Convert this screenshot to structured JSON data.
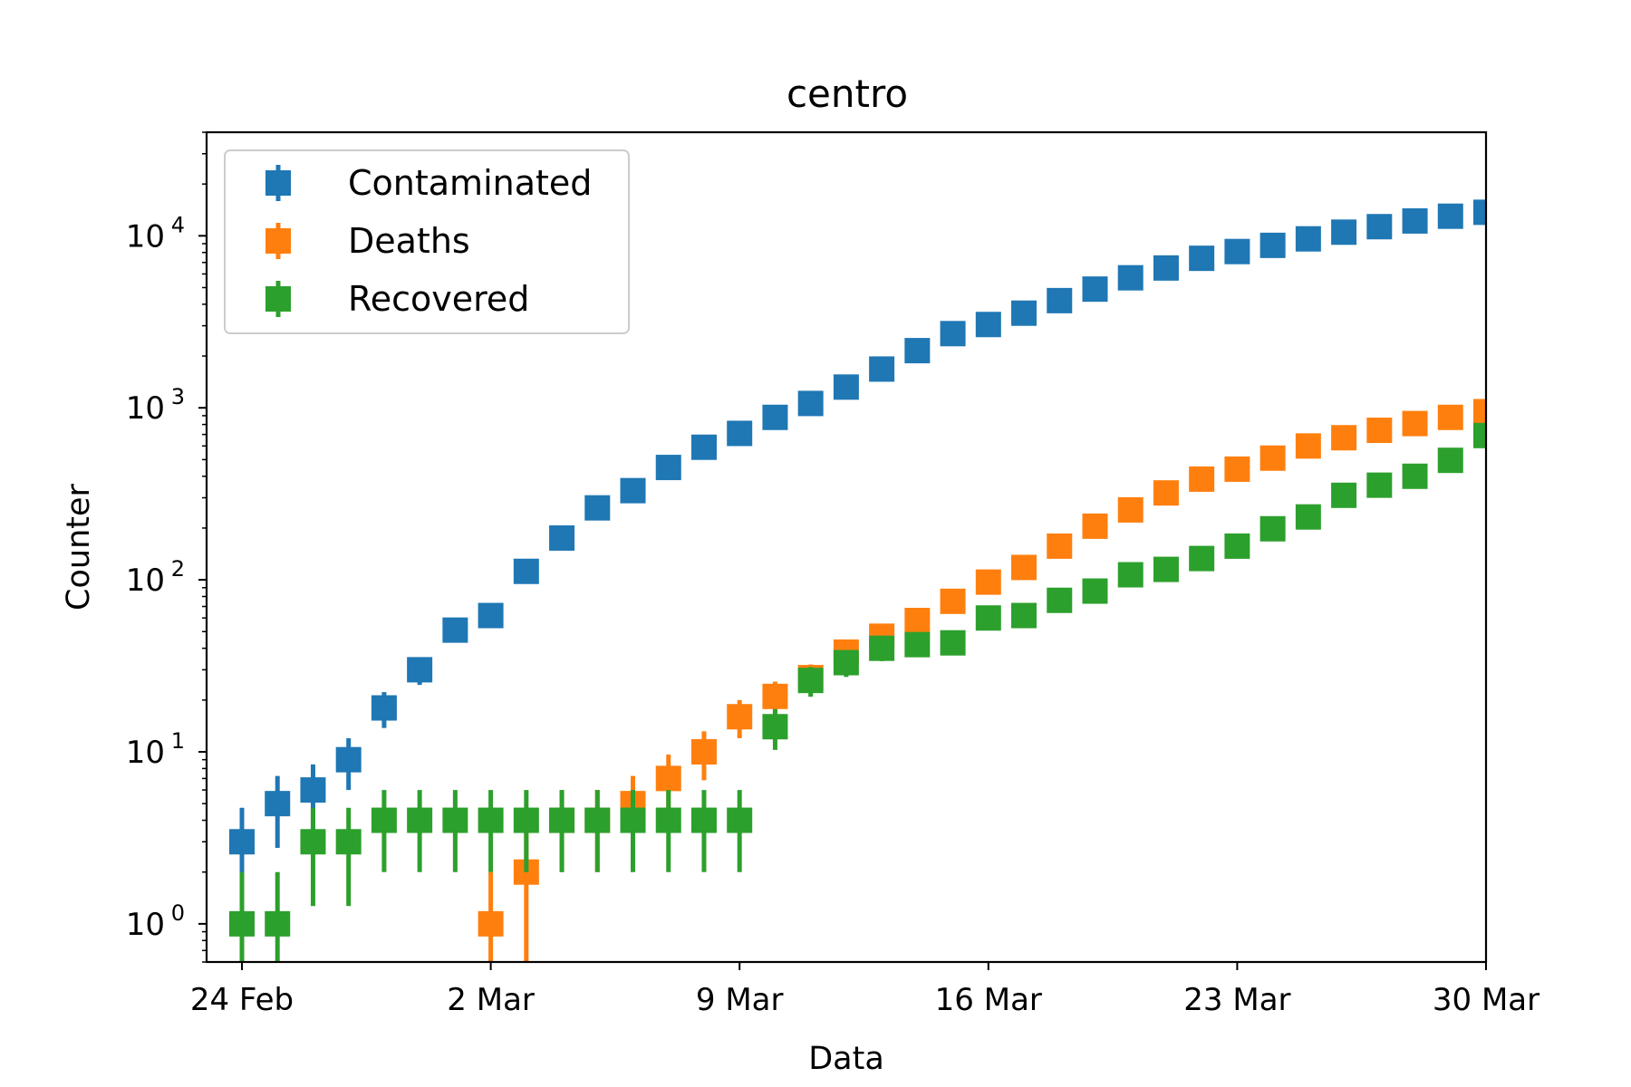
{
  "chart_data": {
    "type": "scatter",
    "title": "centro",
    "xlabel": "Data",
    "ylabel": "Counter",
    "yscale": "log",
    "ylim": [
      0.6,
      40000
    ],
    "xlim": [
      "2020-02-23",
      "2020-03-30"
    ],
    "grid": false,
    "legend_position": "top-left",
    "x_ticks": [
      {
        "date": "2020-02-24",
        "label": "24 Feb"
      },
      {
        "date": "2020-03-02",
        "label": "2 Mar"
      },
      {
        "date": "2020-03-09",
        "label": "9 Mar"
      },
      {
        "date": "2020-03-16",
        "label": "16 Mar"
      },
      {
        "date": "2020-03-23",
        "label": "23 Mar"
      },
      {
        "date": "2020-03-30",
        "label": "30 Mar"
      }
    ],
    "y_ticks": [
      {
        "value": 1,
        "base": "10",
        "exp": "0"
      },
      {
        "value": 10,
        "base": "10",
        "exp": "1"
      },
      {
        "value": 100,
        "base": "10",
        "exp": "2"
      },
      {
        "value": 1000,
        "base": "10",
        "exp": "3"
      },
      {
        "value": 10000,
        "base": "10",
        "exp": "4"
      }
    ],
    "series": [
      {
        "name": "Contaminated",
        "color": "#1f77b4",
        "points": [
          [
            "2020-02-24",
            3
          ],
          [
            "2020-02-25",
            5
          ],
          [
            "2020-02-26",
            6
          ],
          [
            "2020-02-27",
            9
          ],
          [
            "2020-02-28",
            18
          ],
          [
            "2020-02-29",
            30
          ],
          [
            "2020-03-01",
            51
          ],
          [
            "2020-03-02",
            62
          ],
          [
            "2020-03-03",
            112
          ],
          [
            "2020-03-04",
            175
          ],
          [
            "2020-03-05",
            262
          ],
          [
            "2020-03-06",
            330
          ],
          [
            "2020-03-07",
            450
          ],
          [
            "2020-03-08",
            590
          ],
          [
            "2020-03-09",
            710
          ],
          [
            "2020-03-10",
            880
          ],
          [
            "2020-03-11",
            1060
          ],
          [
            "2020-03-12",
            1320
          ],
          [
            "2020-03-13",
            1680
          ],
          [
            "2020-03-14",
            2150
          ],
          [
            "2020-03-15",
            2700
          ],
          [
            "2020-03-16",
            3050
          ],
          [
            "2020-03-17",
            3550
          ],
          [
            "2020-03-18",
            4200
          ],
          [
            "2020-03-19",
            4900
          ],
          [
            "2020-03-20",
            5700
          ],
          [
            "2020-03-21",
            6500
          ],
          [
            "2020-03-22",
            7400
          ],
          [
            "2020-03-23",
            8100
          ],
          [
            "2020-03-24",
            8800
          ],
          [
            "2020-03-25",
            9600
          ],
          [
            "2020-03-26",
            10500
          ],
          [
            "2020-03-27",
            11300
          ],
          [
            "2020-03-28",
            12200
          ],
          [
            "2020-03-29",
            13000
          ],
          [
            "2020-03-30",
            13700
          ]
        ]
      },
      {
        "name": "Deaths",
        "color": "#ff7f0e",
        "points": [
          [
            "2020-03-02",
            1
          ],
          [
            "2020-03-03",
            2
          ],
          [
            "2020-03-04",
            4
          ],
          [
            "2020-03-05",
            4
          ],
          [
            "2020-03-06",
            5
          ],
          [
            "2020-03-07",
            7
          ],
          [
            "2020-03-08",
            10
          ],
          [
            "2020-03-09",
            16
          ],
          [
            "2020-03-10",
            21
          ],
          [
            "2020-03-11",
            27
          ],
          [
            "2020-03-12",
            38
          ],
          [
            "2020-03-13",
            47
          ],
          [
            "2020-03-14",
            58
          ],
          [
            "2020-03-15",
            75
          ],
          [
            "2020-03-16",
            97
          ],
          [
            "2020-03-17",
            118
          ],
          [
            "2020-03-18",
            157
          ],
          [
            "2020-03-19",
            205
          ],
          [
            "2020-03-20",
            255
          ],
          [
            "2020-03-21",
            320
          ],
          [
            "2020-03-22",
            385
          ],
          [
            "2020-03-23",
            440
          ],
          [
            "2020-03-24",
            510
          ],
          [
            "2020-03-25",
            600
          ],
          [
            "2020-03-26",
            670
          ],
          [
            "2020-03-27",
            740
          ],
          [
            "2020-03-28",
            810
          ],
          [
            "2020-03-29",
            880
          ],
          [
            "2020-03-30",
            950
          ]
        ]
      },
      {
        "name": "Recovered",
        "color": "#2ca02c",
        "points": [
          [
            "2020-02-24",
            1
          ],
          [
            "2020-02-25",
            1
          ],
          [
            "2020-02-26",
            3
          ],
          [
            "2020-02-27",
            3
          ],
          [
            "2020-02-28",
            4
          ],
          [
            "2020-02-29",
            4
          ],
          [
            "2020-03-01",
            4
          ],
          [
            "2020-03-02",
            4
          ],
          [
            "2020-03-03",
            4
          ],
          [
            "2020-03-04",
            4
          ],
          [
            "2020-03-05",
            4
          ],
          [
            "2020-03-06",
            4
          ],
          [
            "2020-03-07",
            4
          ],
          [
            "2020-03-08",
            4
          ],
          [
            "2020-03-09",
            4
          ],
          [
            "2020-03-10",
            14
          ],
          [
            "2020-03-11",
            26
          ],
          [
            "2020-03-12",
            33
          ],
          [
            "2020-03-13",
            40
          ],
          [
            "2020-03-14",
            42
          ],
          [
            "2020-03-15",
            43
          ],
          [
            "2020-03-16",
            60
          ],
          [
            "2020-03-17",
            62
          ],
          [
            "2020-03-18",
            76
          ],
          [
            "2020-03-19",
            86
          ],
          [
            "2020-03-20",
            107
          ],
          [
            "2020-03-21",
            115
          ],
          [
            "2020-03-22",
            133
          ],
          [
            "2020-03-23",
            157
          ],
          [
            "2020-03-24",
            198
          ],
          [
            "2020-03-25",
            232
          ],
          [
            "2020-03-26",
            310
          ],
          [
            "2020-03-27",
            355
          ],
          [
            "2020-03-28",
            400
          ],
          [
            "2020-03-29",
            495
          ],
          [
            "2020-03-30",
            690
          ]
        ]
      }
    ]
  }
}
